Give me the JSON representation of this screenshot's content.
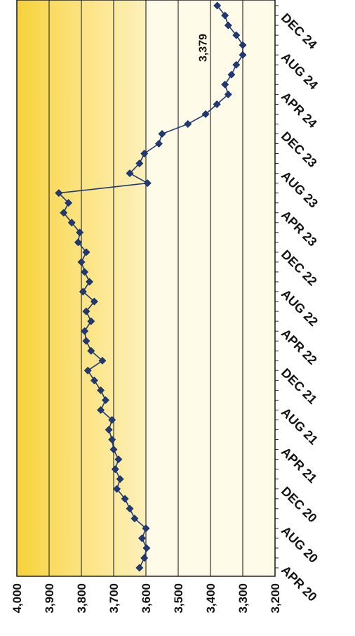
{
  "chart_data": {
    "type": "line",
    "orientation": "rotated-90-clockwise",
    "ylim": [
      3200,
      4000
    ],
    "y_ticks": [
      "4,000",
      "3,900",
      "3,800",
      "3,700",
      "3,600",
      "3,500",
      "3,400",
      "3,300",
      "3,200"
    ],
    "y_tick_values": [
      4000,
      3900,
      3800,
      3700,
      3600,
      3500,
      3400,
      3300,
      3200
    ],
    "x_range": [
      "Apr 2020",
      "Jan 2025"
    ],
    "x_ticks": [
      {
        "label": "APR 20",
        "date": "2020-04"
      },
      {
        "label": "AUG 20",
        "date": "2020-08"
      },
      {
        "label": "DEC 20",
        "date": "2020-12"
      },
      {
        "label": "APR 21",
        "date": "2021-04"
      },
      {
        "label": "AUG 21",
        "date": "2021-08"
      },
      {
        "label": "DEC 21",
        "date": "2021-12"
      },
      {
        "label": "APR 22",
        "date": "2022-04"
      },
      {
        "label": "AUG 22",
        "date": "2022-08"
      },
      {
        "label": "DEC 22",
        "date": "2022-12"
      },
      {
        "label": "APR 23",
        "date": "2023-04"
      },
      {
        "label": "AUG 23",
        "date": "2023-08"
      },
      {
        "label": "DEC 23",
        "date": "2023-12"
      },
      {
        "label": "APR 24",
        "date": "2024-04"
      },
      {
        "label": "AUG 24",
        "date": "2024-08"
      },
      {
        "label": "DEC 24",
        "date": "2024-12"
      }
    ],
    "grid": true,
    "legend": "none",
    "background": "yellow band for values above 3,600; pale cream below",
    "series": [
      {
        "color": "#1f3a78",
        "marker": "diamond",
        "points": [
          {
            "x": "2020-04",
            "y": 3620
          },
          {
            "x": "2020-05",
            "y": 3605
          },
          {
            "x": "2020-06",
            "y": 3598
          },
          {
            "x": "2020-07",
            "y": 3612
          },
          {
            "x": "2020-08",
            "y": 3600
          },
          {
            "x": "2020-09",
            "y": 3635
          },
          {
            "x": "2020-10",
            "y": 3650
          },
          {
            "x": "2020-11",
            "y": 3665
          },
          {
            "x": "2020-12",
            "y": 3690
          },
          {
            "x": "2021-01",
            "y": 3680
          },
          {
            "x": "2021-02",
            "y": 3695
          },
          {
            "x": "2021-03",
            "y": 3685
          },
          {
            "x": "2021-04",
            "y": 3700
          },
          {
            "x": "2021-05",
            "y": 3705
          },
          {
            "x": "2021-06",
            "y": 3715
          },
          {
            "x": "2021-07",
            "y": 3705
          },
          {
            "x": "2021-08",
            "y": 3740
          },
          {
            "x": "2021-09",
            "y": 3725
          },
          {
            "x": "2021-10",
            "y": 3740
          },
          {
            "x": "2021-11",
            "y": 3760
          },
          {
            "x": "2021-12",
            "y": 3780
          },
          {
            "x": "2022-01",
            "y": 3735
          },
          {
            "x": "2022-02",
            "y": 3770
          },
          {
            "x": "2022-03",
            "y": 3785
          },
          {
            "x": "2022-04",
            "y": 3790
          },
          {
            "x": "2022-05",
            "y": 3770
          },
          {
            "x": "2022-06",
            "y": 3785
          },
          {
            "x": "2022-07",
            "y": 3760
          },
          {
            "x": "2022-08",
            "y": 3795
          },
          {
            "x": "2022-09",
            "y": 3775
          },
          {
            "x": "2022-10",
            "y": 3790
          },
          {
            "x": "2022-11",
            "y": 3800
          },
          {
            "x": "2022-12",
            "y": 3785
          },
          {
            "x": "2023-01",
            "y": 3810
          },
          {
            "x": "2023-02",
            "y": 3805
          },
          {
            "x": "2023-03",
            "y": 3830
          },
          {
            "x": "2023-04",
            "y": 3855
          },
          {
            "x": "2023-05",
            "y": 3840
          },
          {
            "x": "2023-06",
            "y": 3870
          },
          {
            "x": "2023-07",
            "y": 3595
          },
          {
            "x": "2023-08",
            "y": 3650
          },
          {
            "x": "2023-09",
            "y": 3620
          },
          {
            "x": "2023-10",
            "y": 3605
          },
          {
            "x": "2023-11",
            "y": 3560
          },
          {
            "x": "2023-12",
            "y": 3550
          },
          {
            "x": "2024-01",
            "y": 3470
          },
          {
            "x": "2024-02",
            "y": 3415
          },
          {
            "x": "2024-03",
            "y": 3380
          },
          {
            "x": "2024-04",
            "y": 3345
          },
          {
            "x": "2024-05",
            "y": 3355
          },
          {
            "x": "2024-06",
            "y": 3335
          },
          {
            "x": "2024-07",
            "y": 3320
          },
          {
            "x": "2024-08",
            "y": 3300
          },
          {
            "x": "2024-09",
            "y": 3300
          },
          {
            "x": "2024-10",
            "y": 3320
          },
          {
            "x": "2024-11",
            "y": 3345
          },
          {
            "x": "2024-12",
            "y": 3355
          },
          {
            "x": "2025-01",
            "y": 3379
          }
        ]
      }
    ],
    "annotations": [
      {
        "text": "3,379",
        "x": "2025-01",
        "y": 3379
      }
    ]
  }
}
